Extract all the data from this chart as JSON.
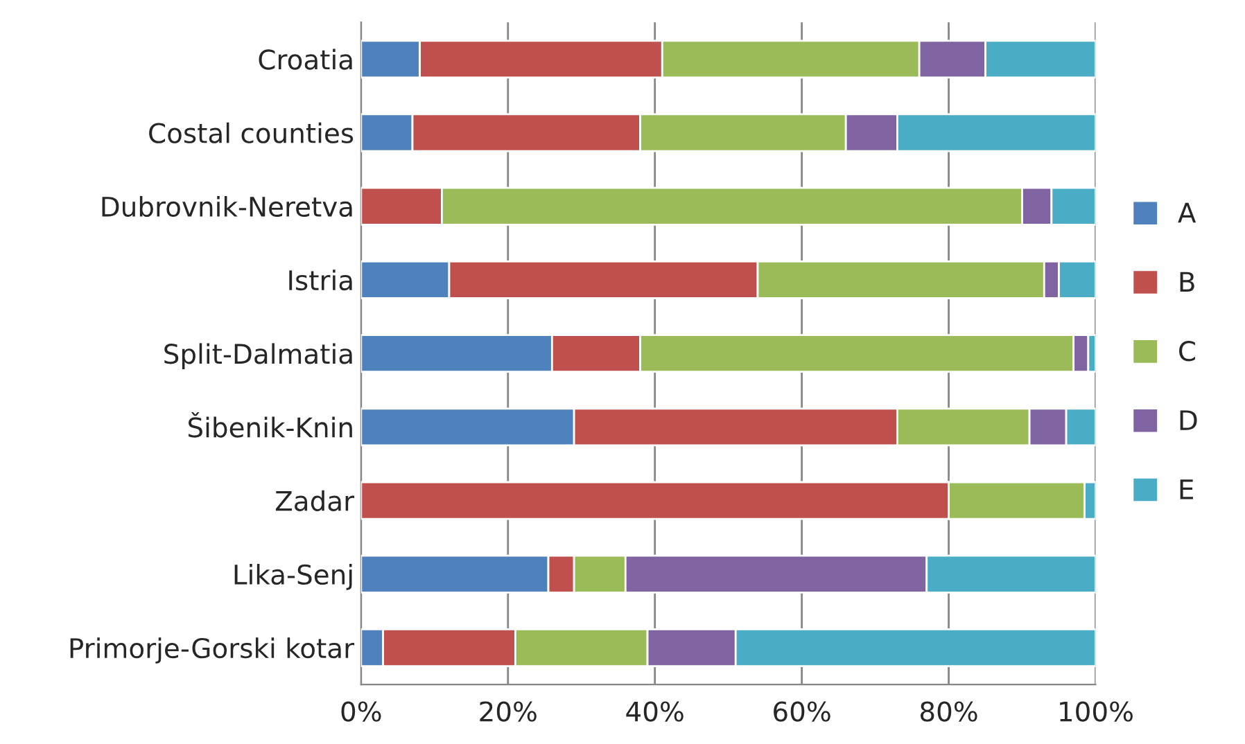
{
  "chart_data": {
    "type": "bar",
    "orientation": "horizontal",
    "stacked": true,
    "categories": [
      "Croatia",
      "Costal counties",
      "Dubrovnik-Neretva",
      "Istria",
      "Split-Dalmatia",
      "Šibenik-Knin",
      "Zadar",
      "Lika-Senj",
      "Primorje-Gorski kotar"
    ],
    "series": [
      {
        "name": "A",
        "color": "#4f81bd",
        "values": [
          8,
          7,
          0,
          12,
          26,
          29,
          0,
          25.5,
          3
        ]
      },
      {
        "name": "B",
        "color": "#c0504d",
        "values": [
          33,
          31,
          11,
          42,
          12,
          44,
          80,
          3.5,
          18
        ]
      },
      {
        "name": "C",
        "color": "#9bbb59",
        "values": [
          35,
          28,
          79,
          39,
          59,
          18,
          18.5,
          7,
          18
        ]
      },
      {
        "name": "D",
        "color": "#8064a2",
        "values": [
          9,
          7,
          4,
          2,
          2,
          5,
          0,
          41,
          12
        ]
      },
      {
        "name": "E",
        "color": "#4bacc6",
        "values": [
          15,
          27,
          6,
          5,
          1,
          4,
          1.5,
          23,
          49
        ]
      }
    ],
    "xlim": [
      0,
      100
    ],
    "xticks": [
      {
        "value": 0,
        "label": "0%"
      },
      {
        "value": 20,
        "label": "20%"
      },
      {
        "value": 40,
        "label": "40%"
      },
      {
        "value": 60,
        "label": "60%"
      },
      {
        "value": 80,
        "label": "80%"
      },
      {
        "value": 100,
        "label": "100%"
      }
    ],
    "grid": "x",
    "legend": "right"
  }
}
